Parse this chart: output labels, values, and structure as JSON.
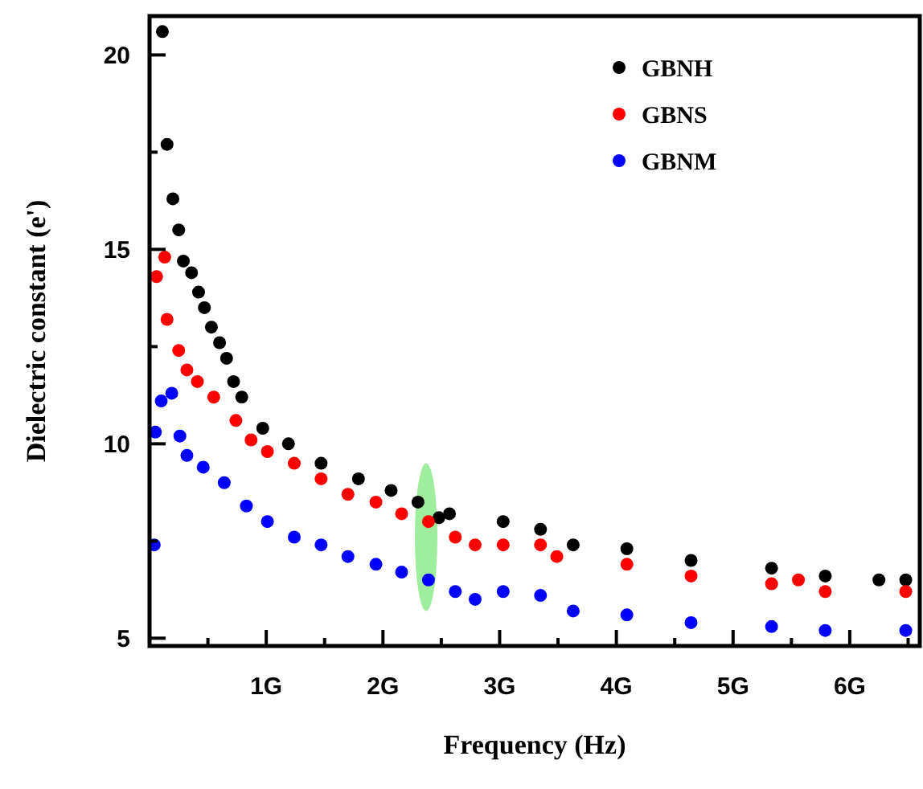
{
  "chart_data": {
    "type": "scatter",
    "xlabel": "Frequency (Hz)",
    "ylabel": "Dielectric constant (e')",
    "xlim": [
      0,
      6.6
    ],
    "ylim": [
      4.8,
      21
    ],
    "xticks": [
      {
        "value": 0.5,
        "label": null
      },
      {
        "value": 1,
        "label": "1G"
      },
      {
        "value": 1.5,
        "label": null
      },
      {
        "value": 2,
        "label": "2G"
      },
      {
        "value": 2.5,
        "label": null
      },
      {
        "value": 3,
        "label": "3G"
      },
      {
        "value": 3.5,
        "label": null
      },
      {
        "value": 4,
        "label": "4G"
      },
      {
        "value": 4.5,
        "label": null
      },
      {
        "value": 5,
        "label": "5G"
      },
      {
        "value": 5.5,
        "label": null
      },
      {
        "value": 6,
        "label": "6G"
      },
      {
        "value": 6.5,
        "label": null
      }
    ],
    "yticks": [
      5,
      {
        "value": 7.5,
        "label": null
      },
      10,
      {
        "value": 12.5,
        "label": null
      },
      15,
      {
        "value": 17.5,
        "label": null
      },
      20
    ],
    "marker": "circle",
    "legend": "top right",
    "grid": false,
    "series": [
      {
        "name": "GBNH",
        "color": "#000000",
        "x": [
          0.11,
          0.15,
          0.2,
          0.25,
          0.29,
          0.36,
          0.42,
          0.47,
          0.53,
          0.6,
          0.66,
          0.72,
          0.79,
          0.97,
          1.19,
          1.47,
          1.79,
          2.07,
          2.3,
          2.48,
          2.57,
          3.03,
          3.35,
          3.63,
          4.09,
          4.64,
          5.33,
          5.79,
          6.25,
          6.48
        ],
        "values": [
          20.6,
          17.7,
          16.3,
          15.5,
          14.7,
          14.4,
          13.9,
          13.5,
          13,
          12.6,
          12.2,
          11.6,
          11.2,
          10.4,
          10,
          9.5,
          9.1,
          8.8,
          8.5,
          8.1,
          8.2,
          8,
          7.8,
          7.4,
          7.3,
          7,
          6.8,
          6.6,
          6.5,
          6.5
        ]
      },
      {
        "name": "GBNS",
        "color": "#ff0000",
        "x": [
          0.06,
          0.13,
          0.15,
          0.25,
          0.32,
          0.41,
          0.55,
          0.74,
          0.87,
          1.01,
          1.24,
          1.47,
          1.7,
          1.94,
          2.16,
          2.39,
          2.62,
          2.79,
          3.03,
          3.35,
          3.49,
          4.09,
          4.64,
          5.33,
          5.56,
          5.79,
          6.48
        ],
        "values": [
          14.3,
          14.8,
          13.2,
          12.4,
          11.9,
          11.6,
          11.2,
          10.6,
          10.1,
          9.8,
          9.5,
          9.1,
          8.7,
          8.5,
          8.2,
          8,
          7.6,
          7.4,
          7.4,
          7.4,
          7.1,
          6.9,
          6.6,
          6.4,
          6.5,
          6.2,
          6.2
        ]
      },
      {
        "name": "GBNM",
        "color": "#0000ff",
        "x": [
          0.04,
          0.05,
          0.1,
          0.19,
          0.26,
          0.32,
          0.46,
          0.64,
          0.83,
          1.01,
          1.24,
          1.47,
          1.7,
          1.94,
          2.16,
          2.39,
          2.62,
          2.79,
          3.03,
          3.35,
          3.63,
          4.09,
          4.64,
          5.33,
          5.79,
          6.48
        ],
        "values": [
          7.4,
          10.3,
          11.1,
          11.3,
          10.2,
          9.7,
          9.4,
          9,
          8.4,
          8,
          7.6,
          7.4,
          7.1,
          6.9,
          6.7,
          6.5,
          6.2,
          6,
          6.2,
          6.1,
          5.7,
          5.6,
          5.4,
          5.3,
          5.2,
          5.2
        ]
      }
    ]
  }
}
